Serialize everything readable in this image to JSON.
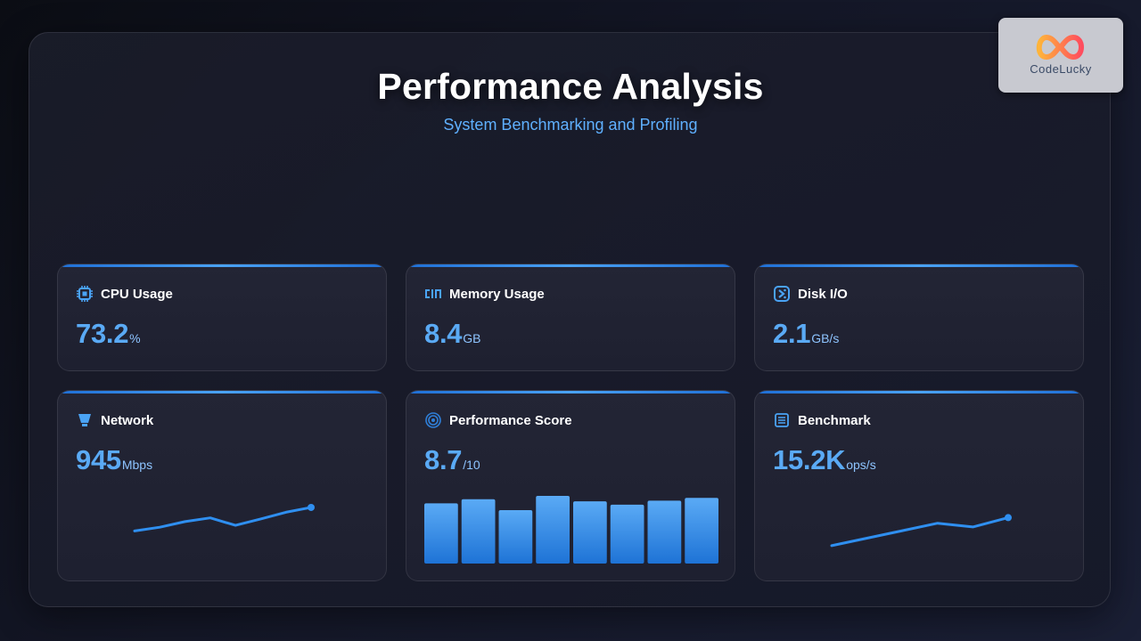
{
  "header": {
    "title": "Performance Analysis",
    "subtitle": "System Benchmarking and Profiling"
  },
  "logo": {
    "text": "CodeLucky"
  },
  "colors": {
    "accent": "#5aaaf5",
    "bar_top": "#5aaaf5",
    "bar_bottom": "#1e73d6",
    "line": "#2f8ff0"
  },
  "cards": [
    {
      "id": "cpu",
      "label": "CPU Usage",
      "icon": "cpu-chip-icon",
      "value": "73.2",
      "unit": "%"
    },
    {
      "id": "memory",
      "label": "Memory Usage",
      "icon": "memory-icon",
      "value": "8.4",
      "unit": "GB"
    },
    {
      "id": "disk",
      "label": "Disk I/O",
      "icon": "disk-icon",
      "value": "2.1",
      "unit": "GB/s"
    },
    {
      "id": "network",
      "label": "Network",
      "icon": "network-icon",
      "value": "945",
      "unit": "Mbps",
      "trend": [
        0.3,
        0.4,
        0.55,
        0.65,
        0.45,
        0.62,
        0.8,
        0.93
      ]
    },
    {
      "id": "score",
      "label": "Performance Score",
      "icon": "target-icon",
      "value": "8.7",
      "unit": "/10",
      "bars": [
        0.89,
        0.95,
        0.79,
        1.0,
        0.92,
        0.87,
        0.93,
        0.97
      ]
    },
    {
      "id": "benchmark",
      "label": "Benchmark",
      "icon": "benchmark-list-icon",
      "value": "15.2K",
      "unit": "ops/s",
      "trend": [
        0.05,
        0.25,
        0.45,
        0.65,
        0.55,
        0.8
      ]
    }
  ]
}
